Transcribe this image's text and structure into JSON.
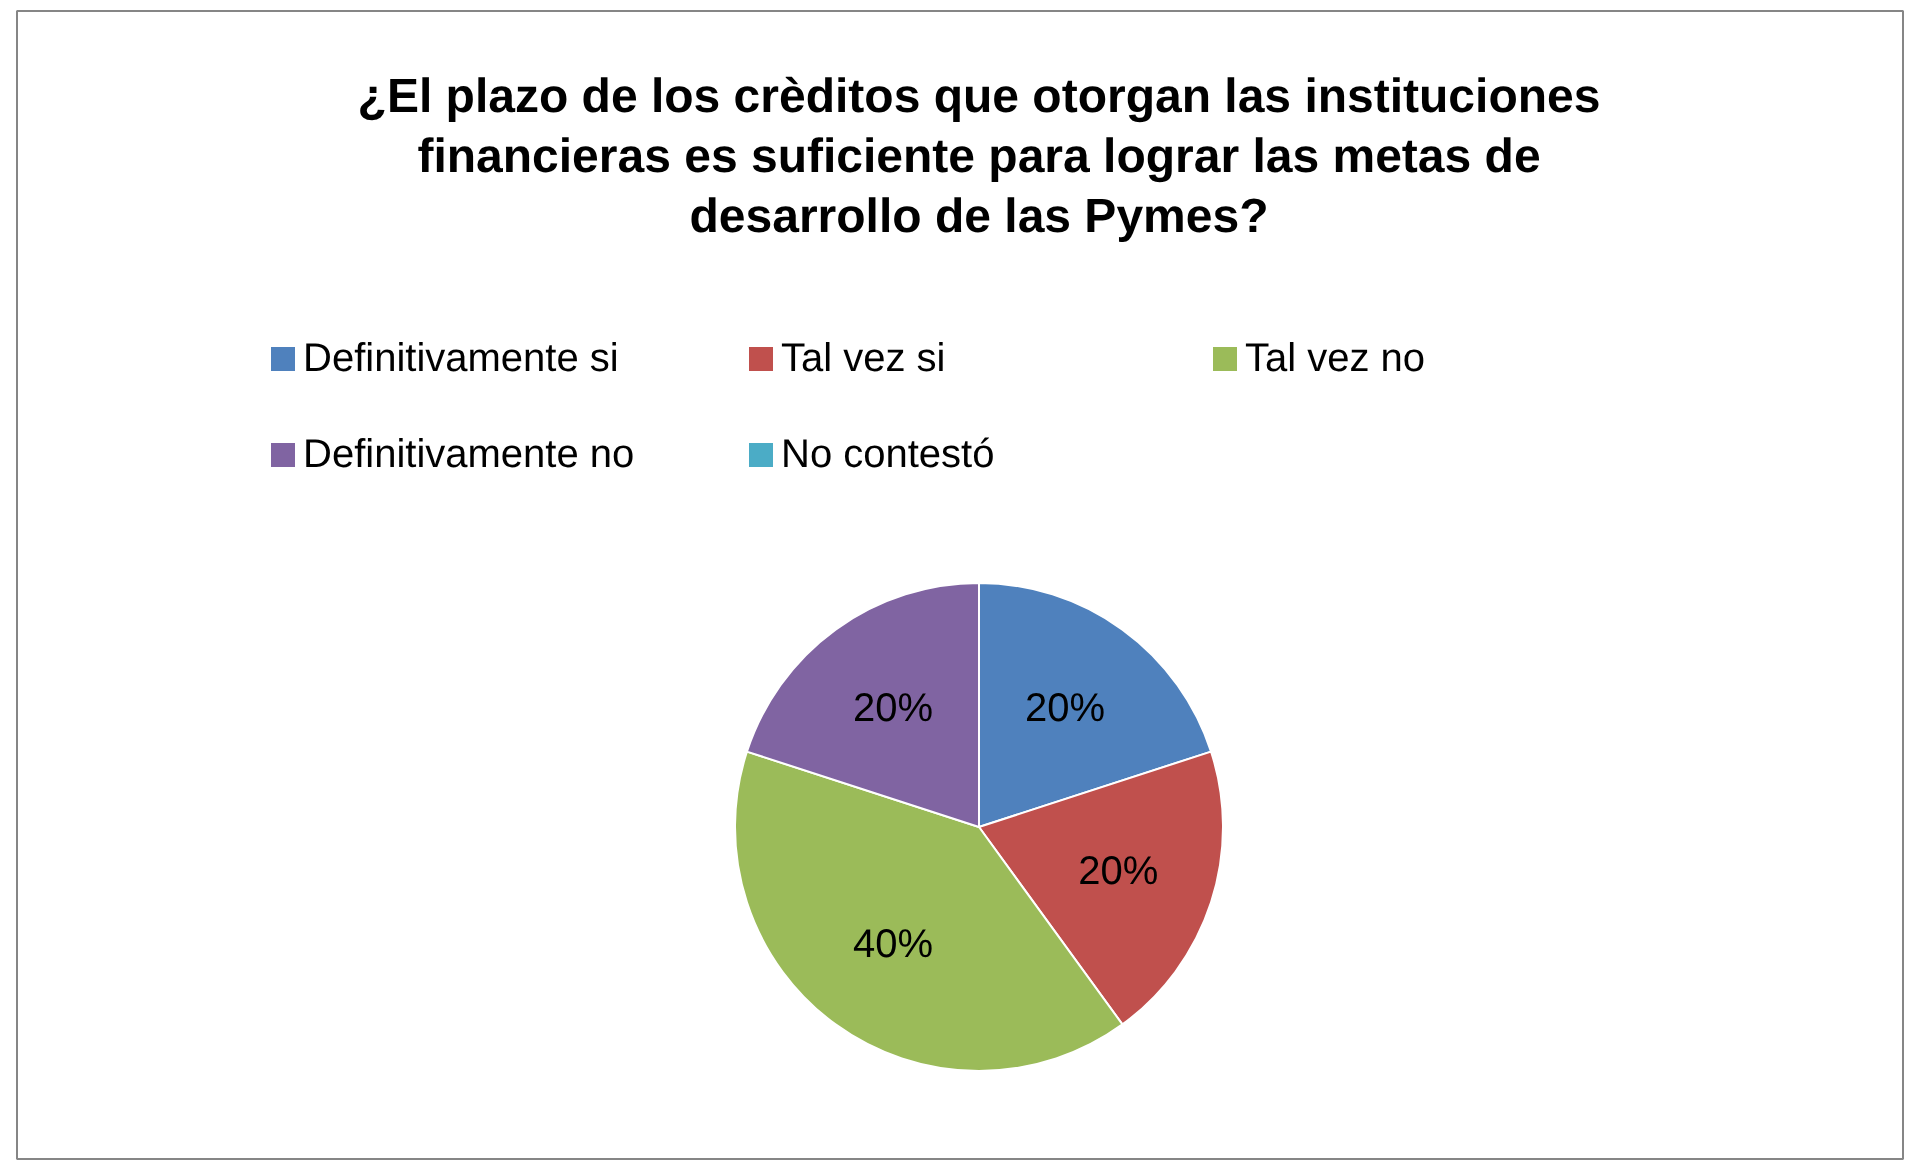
{
  "chart_data": {
    "type": "pie",
    "title": "¿El plazo de los crèditos que otorgan las instituciones\nfinancieras es suficiente para lograr las metas de\ndesarrollo de las Pymes?",
    "categories": [
      "Definitivamente si",
      "Tal vez si",
      "Tal vez no",
      "Definitivamente no",
      "No contestó"
    ],
    "values": [
      20,
      20,
      40,
      20,
      0
    ],
    "colors": [
      "#4f81bd",
      "#c0504d",
      "#9bbb59",
      "#8064a2",
      "#4bacc6"
    ],
    "value_labels": [
      "20%",
      "20%",
      "40%",
      "20%",
      null
    ],
    "legend": "top"
  }
}
